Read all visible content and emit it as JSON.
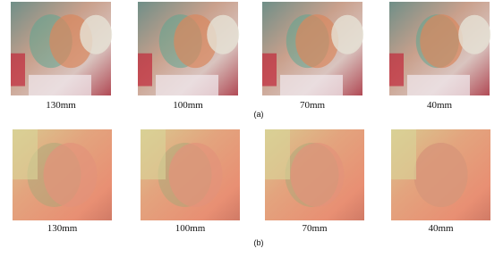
{
  "panels": [
    {
      "label": "(a)",
      "images": [
        {
          "caption": "130mm"
        },
        {
          "caption": "100mm"
        },
        {
          "caption": "70mm"
        },
        {
          "caption": "40mm"
        }
      ]
    },
    {
      "label": "(b)",
      "images": [
        {
          "caption": "130mm"
        },
        {
          "caption": "100mm"
        },
        {
          "caption": "70mm"
        },
        {
          "caption": "40mm"
        }
      ]
    }
  ]
}
